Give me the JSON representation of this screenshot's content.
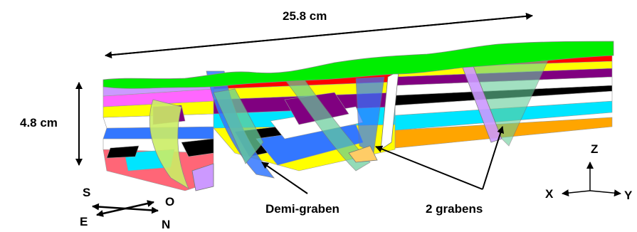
{
  "dimensions": {
    "length_label": "25.8 cm",
    "height_label": "4.8 cm"
  },
  "annotations": {
    "half_graben": "Demi-graben",
    "grabens": "2 grabens"
  },
  "orientation": {
    "south": "S",
    "east": "E",
    "west": "O",
    "north": "N"
  },
  "axes": {
    "x": "X",
    "y": "Y",
    "z": "Z"
  },
  "layer_colors": [
    "#00ee00",
    "#ff0000",
    "#ffff00",
    "#800080",
    "#ffffff",
    "#000000",
    "#00e5ff",
    "#ffa500"
  ],
  "fault_colors": [
    "#66cc99",
    "#3377ff",
    "#ff66ff",
    "#cc99ff",
    "#ffcc66"
  ]
}
